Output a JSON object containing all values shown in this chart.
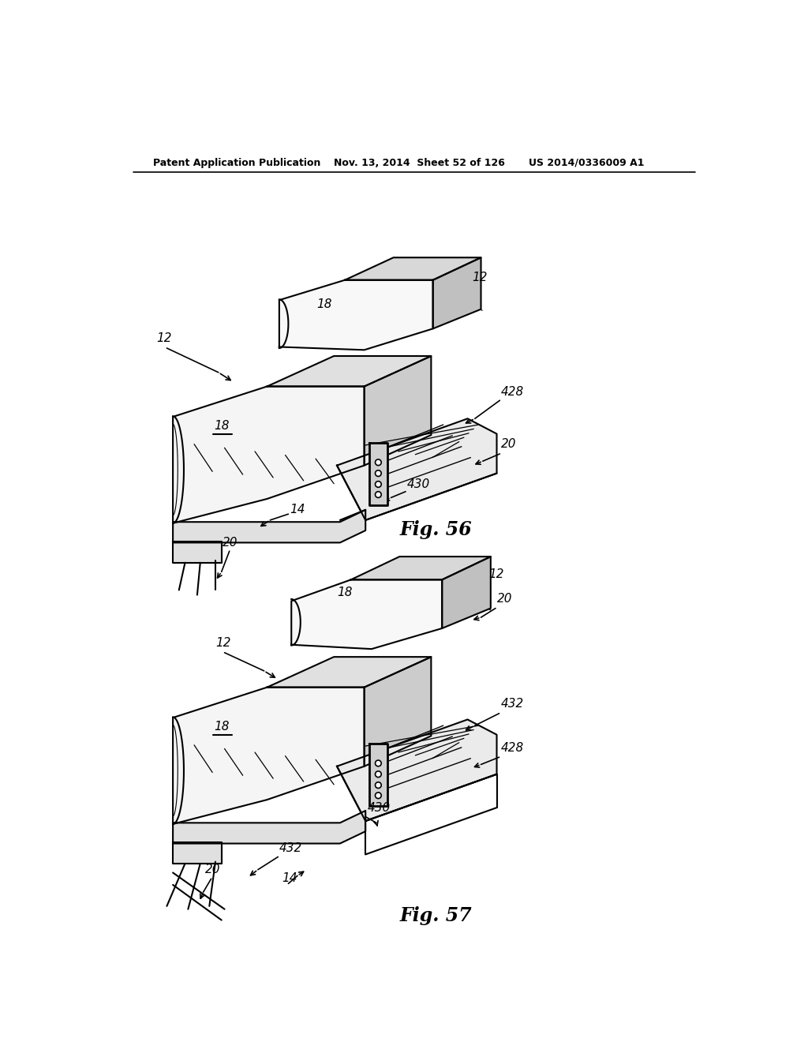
{
  "background_color": "#ffffff",
  "header_text": "Patent Application Publication",
  "header_date": "Nov. 13, 2014  Sheet 52 of 126",
  "header_patent": "US 2014/0336009 A1",
  "fig56_label": "Fig. 56",
  "fig57_label": "Fig. 57",
  "line_color": "#000000"
}
